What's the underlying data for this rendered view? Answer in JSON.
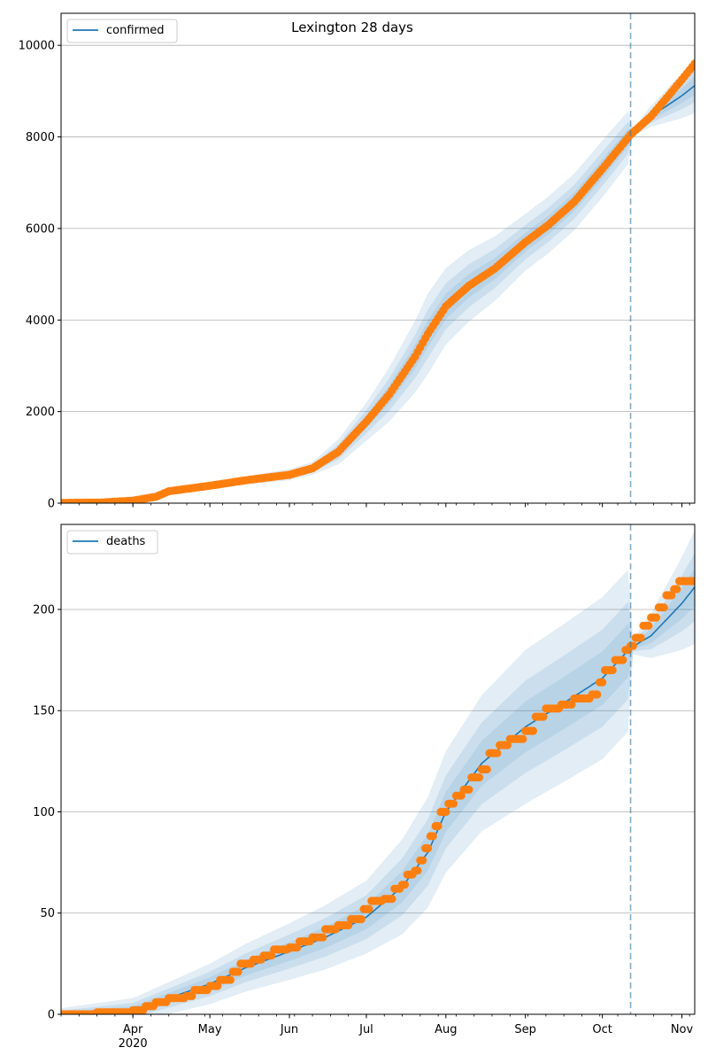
{
  "title": "Lexington 28 days",
  "chart_data": [
    {
      "type": "line",
      "legend": "confirmed",
      "legend_position": "top-left",
      "grid": "y",
      "x_domain": [
        "2020-03-04",
        "2020-11-06"
      ],
      "xticks": [
        "Apr",
        "May",
        "Jun",
        "Jul",
        "Aug",
        "Sep",
        "Oct",
        "Nov"
      ],
      "xtick_year": "2020",
      "ylim": [
        0,
        10700
      ],
      "yticks": [
        "0",
        "2000",
        "4000",
        "6000",
        "8000",
        "10000"
      ],
      "forecast_start": "2020-10-12",
      "colors": {
        "line": "#1f77b4",
        "points": "#ff7f0e",
        "band": "#1f77b4"
      },
      "fit_knots": [
        [
          "2020-03-04",
          5
        ],
        [
          "2020-03-20",
          20
        ],
        [
          "2020-04-01",
          60
        ],
        [
          "2020-04-15",
          250
        ],
        [
          "2020-05-01",
          380
        ],
        [
          "2020-05-15",
          500
        ],
        [
          "2020-06-01",
          620
        ],
        [
          "2020-06-10",
          760
        ],
        [
          "2020-06-20",
          1120
        ],
        [
          "2020-07-01",
          1780
        ],
        [
          "2020-07-10",
          2380
        ],
        [
          "2020-07-20",
          3200
        ],
        [
          "2020-07-25",
          3700
        ],
        [
          "2020-08-01",
          4300
        ],
        [
          "2020-08-10",
          4750
        ],
        [
          "2020-08-20",
          5120
        ],
        [
          "2020-09-01",
          5700
        ],
        [
          "2020-09-10",
          6080
        ],
        [
          "2020-09-20",
          6580
        ],
        [
          "2020-10-01",
          7300
        ],
        [
          "2020-10-12",
          8050
        ],
        [
          "2020-10-20",
          8450
        ],
        [
          "2020-11-01",
          8900
        ],
        [
          "2020-11-06",
          9120
        ]
      ],
      "band_widths": [
        [
          "2020-03-04",
          20
        ],
        [
          "2020-04-15",
          70
        ],
        [
          "2020-05-15",
          90
        ],
        [
          "2020-06-10",
          140
        ],
        [
          "2020-07-01",
          420
        ],
        [
          "2020-07-25",
          880
        ],
        [
          "2020-08-10",
          780
        ],
        [
          "2020-09-01",
          620
        ],
        [
          "2020-10-01",
          620
        ],
        [
          "2020-10-11",
          580
        ],
        [
          "2020-10-13",
          80
        ],
        [
          "2020-11-06",
          600
        ]
      ],
      "observed_knots": [
        [
          "2020-03-04",
          5
        ],
        [
          "2020-03-20",
          15
        ],
        [
          "2020-04-01",
          55
        ],
        [
          "2020-04-10",
          140
        ],
        [
          "2020-04-15",
          260
        ],
        [
          "2020-05-01",
          380
        ],
        [
          "2020-05-15",
          500
        ],
        [
          "2020-06-01",
          620
        ],
        [
          "2020-06-10",
          760
        ],
        [
          "2020-06-20",
          1120
        ],
        [
          "2020-07-01",
          1780
        ],
        [
          "2020-07-10",
          2380
        ],
        [
          "2020-07-20",
          3200
        ],
        [
          "2020-07-25",
          3700
        ],
        [
          "2020-08-01",
          4300
        ],
        [
          "2020-08-10",
          4750
        ],
        [
          "2020-08-20",
          5120
        ],
        [
          "2020-09-01",
          5700
        ],
        [
          "2020-09-10",
          6080
        ],
        [
          "2020-09-20",
          6580
        ],
        [
          "2020-10-01",
          7300
        ],
        [
          "2020-10-12",
          8050
        ],
        [
          "2020-10-20",
          8450
        ],
        [
          "2020-11-01",
          9250
        ],
        [
          "2020-11-06",
          9600
        ]
      ]
    },
    {
      "type": "line",
      "legend": "deaths",
      "legend_position": "top-left",
      "grid": "y",
      "x_domain": [
        "2020-03-04",
        "2020-11-06"
      ],
      "xticks": [
        "Apr",
        "May",
        "Jun",
        "Jul",
        "Aug",
        "Sep",
        "Oct",
        "Nov"
      ],
      "xtick_year": "2020",
      "ylim": [
        0,
        242
      ],
      "yticks": [
        "0",
        "50",
        "100",
        "150",
        "200"
      ],
      "forecast_start": "2020-10-12",
      "colors": {
        "line": "#1f77b4",
        "points": "#ff7f0e",
        "band": "#1f77b4"
      },
      "fit_knots": [
        [
          "2020-03-04",
          0
        ],
        [
          "2020-04-01",
          2
        ],
        [
          "2020-04-15",
          8
        ],
        [
          "2020-05-01",
          15
        ],
        [
          "2020-05-15",
          23
        ],
        [
          "2020-06-01",
          31
        ],
        [
          "2020-06-15",
          38
        ],
        [
          "2020-07-01",
          48
        ],
        [
          "2020-07-15",
          63
        ],
        [
          "2020-07-25",
          80
        ],
        [
          "2020-08-01",
          100
        ],
        [
          "2020-08-15",
          124
        ],
        [
          "2020-09-01",
          142
        ],
        [
          "2020-09-15",
          153
        ],
        [
          "2020-10-01",
          166
        ],
        [
          "2020-10-12",
          181
        ],
        [
          "2020-10-20",
          187
        ],
        [
          "2020-11-01",
          203
        ],
        [
          "2020-11-06",
          211
        ]
      ],
      "band_widths": [
        [
          "2020-03-04",
          3
        ],
        [
          "2020-04-01",
          6
        ],
        [
          "2020-05-01",
          10
        ],
        [
          "2020-06-01",
          14
        ],
        [
          "2020-07-01",
          18
        ],
        [
          "2020-08-01",
          30
        ],
        [
          "2020-09-01",
          38
        ],
        [
          "2020-10-01",
          40
        ],
        [
          "2020-10-11",
          40
        ],
        [
          "2020-10-13",
          4
        ],
        [
          "2020-11-06",
          28
        ]
      ],
      "observed_steps": [
        [
          "2020-03-04",
          0
        ],
        [
          "2020-03-18",
          1
        ],
        [
          "2020-04-01",
          2
        ],
        [
          "2020-04-06",
          4
        ],
        [
          "2020-04-10",
          6
        ],
        [
          "2020-04-15",
          8
        ],
        [
          "2020-04-22",
          9
        ],
        [
          "2020-04-25",
          12
        ],
        [
          "2020-05-01",
          14
        ],
        [
          "2020-05-05",
          17
        ],
        [
          "2020-05-10",
          21
        ],
        [
          "2020-05-13",
          25
        ],
        [
          "2020-05-18",
          27
        ],
        [
          "2020-05-22",
          29
        ],
        [
          "2020-05-26",
          32
        ],
        [
          "2020-06-01",
          33
        ],
        [
          "2020-06-05",
          36
        ],
        [
          "2020-06-10",
          38
        ],
        [
          "2020-06-15",
          42
        ],
        [
          "2020-06-20",
          44
        ],
        [
          "2020-06-25",
          47
        ],
        [
          "2020-06-30",
          52
        ],
        [
          "2020-07-03",
          56
        ],
        [
          "2020-07-08",
          57
        ],
        [
          "2020-07-12",
          62
        ],
        [
          "2020-07-15",
          64
        ],
        [
          "2020-07-17",
          69
        ],
        [
          "2020-07-20",
          71
        ],
        [
          "2020-07-22",
          76
        ],
        [
          "2020-07-24",
          82
        ],
        [
          "2020-07-26",
          88
        ],
        [
          "2020-07-28",
          93
        ],
        [
          "2020-07-30",
          100
        ],
        [
          "2020-08-02",
          104
        ],
        [
          "2020-08-05",
          108
        ],
        [
          "2020-08-08",
          111
        ],
        [
          "2020-08-11",
          117
        ],
        [
          "2020-08-15",
          121
        ],
        [
          "2020-08-18",
          129
        ],
        [
          "2020-08-22",
          133
        ],
        [
          "2020-08-26",
          136
        ],
        [
          "2020-09-01",
          140
        ],
        [
          "2020-09-05",
          147
        ],
        [
          "2020-09-09",
          151
        ],
        [
          "2020-09-15",
          153
        ],
        [
          "2020-09-20",
          156
        ],
        [
          "2020-09-27",
          158
        ],
        [
          "2020-09-30",
          164
        ],
        [
          "2020-10-02",
          170
        ],
        [
          "2020-10-06",
          175
        ],
        [
          "2020-10-10",
          180
        ],
        [
          "2020-10-12",
          182
        ],
        [
          "2020-10-14",
          186
        ],
        [
          "2020-10-17",
          192
        ],
        [
          "2020-10-20",
          196
        ],
        [
          "2020-10-23",
          201
        ],
        [
          "2020-10-26",
          207
        ],
        [
          "2020-10-29",
          210
        ],
        [
          "2020-10-31",
          214
        ],
        [
          "2020-11-06",
          214
        ]
      ]
    }
  ]
}
